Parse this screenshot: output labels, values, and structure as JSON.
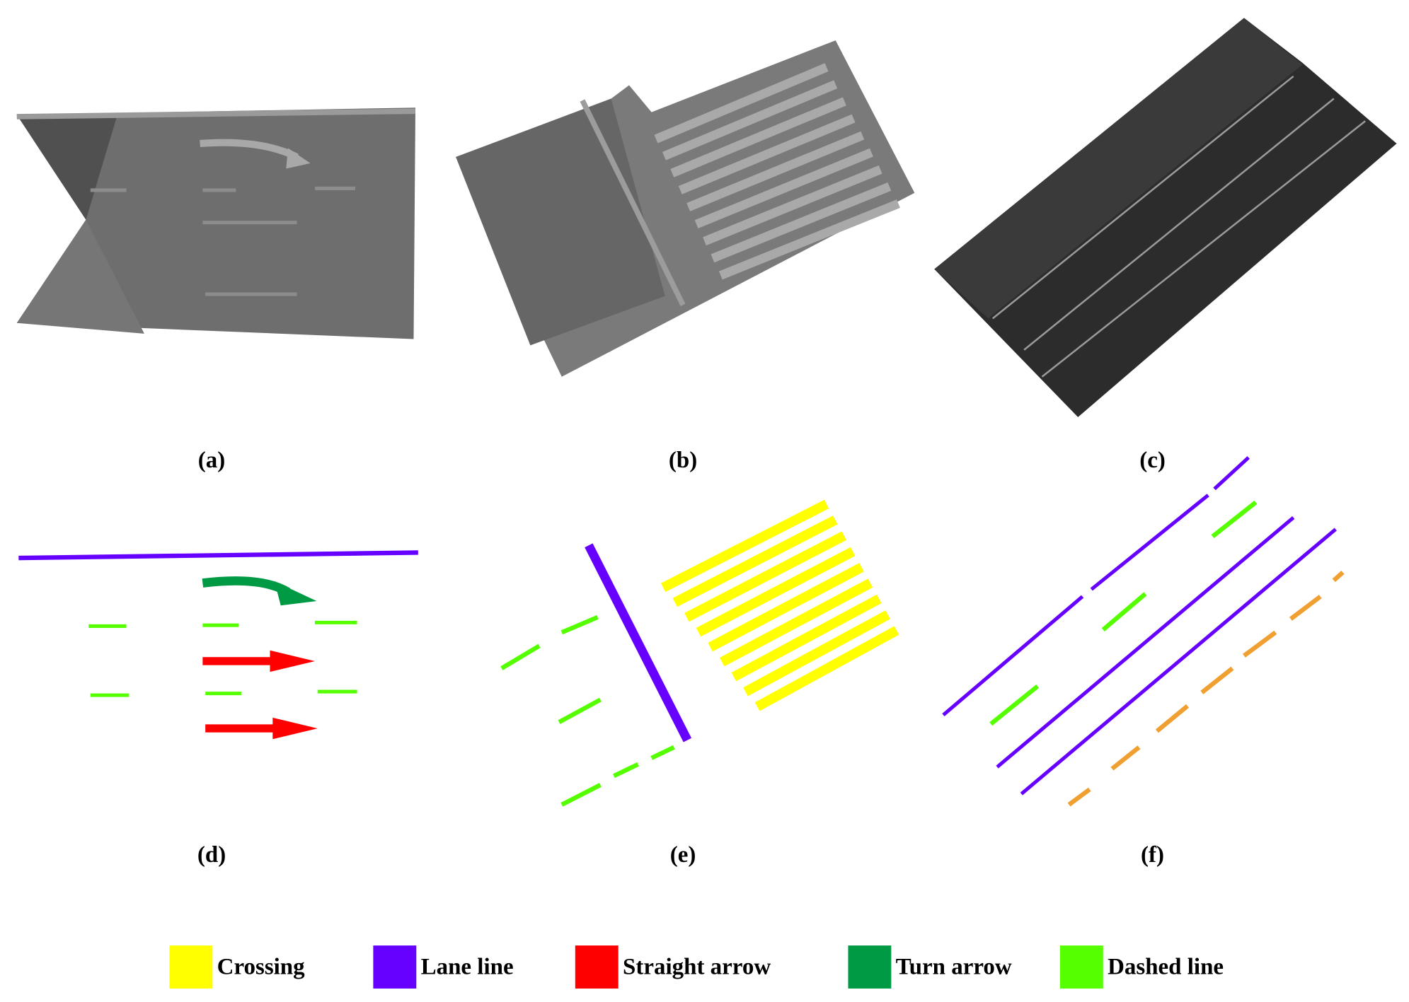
{
  "panels": [
    {
      "label": "(a)"
    },
    {
      "label": "(b)"
    },
    {
      "label": "(c)"
    },
    {
      "label": "(d)"
    },
    {
      "label": "(e)"
    },
    {
      "label": "(f)"
    }
  ],
  "legend": [
    {
      "label": "Crossing",
      "color": "#ffff00"
    },
    {
      "label": "Lane line",
      "color": "#6600ff"
    },
    {
      "label": "Straight arrow",
      "color": "#ff0000"
    },
    {
      "label": "Turn arrow",
      "color": "#009944"
    },
    {
      "label": "Dashed line",
      "color": "#55ff00"
    }
  ]
}
